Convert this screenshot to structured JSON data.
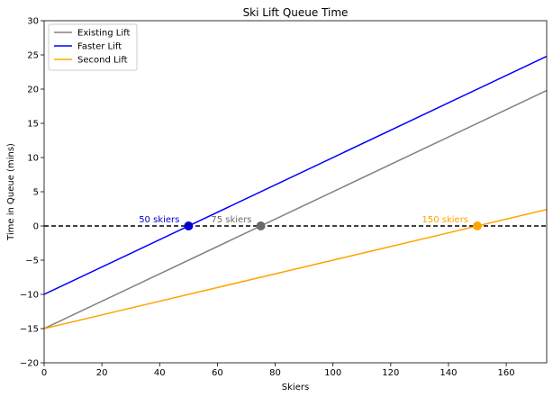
{
  "chart_data": {
    "type": "line",
    "title": "Ski Lift Queue Time",
    "xlabel": "Skiers",
    "ylabel": "Time in Queue (mins)",
    "xlim": [
      0,
      174
    ],
    "ylim": [
      -20,
      30
    ],
    "xticks": [
      0,
      20,
      40,
      60,
      80,
      100,
      120,
      140,
      160
    ],
    "yticks": [
      -20,
      -15,
      -10,
      -5,
      0,
      5,
      10,
      15,
      20,
      25,
      30
    ],
    "grid": false,
    "legend": "upper-left",
    "series": [
      {
        "name": "Existing Lift",
        "color": "#808080",
        "x": [
          0,
          174
        ],
        "y": [
          -15,
          19.8
        ]
      },
      {
        "name": "Faster Lift",
        "color": "#0000ff",
        "x": [
          0,
          174
        ],
        "y": [
          -10,
          24.8
        ]
      },
      {
        "name": "Second Lift",
        "color": "#ffa500",
        "x": [
          0,
          174
        ],
        "y": [
          -15,
          2.4
        ]
      }
    ],
    "reference_line": {
      "y": 0,
      "color": "#000000",
      "style": "dashed"
    },
    "points": [
      {
        "x": 50,
        "y": 0,
        "color": "#0000cd",
        "label": "50 skiers"
      },
      {
        "x": 75,
        "y": 0,
        "color": "#696969",
        "label": "75 skiers"
      },
      {
        "x": 150,
        "y": 0,
        "color": "#ffa500",
        "label": "150 skiers"
      }
    ]
  }
}
